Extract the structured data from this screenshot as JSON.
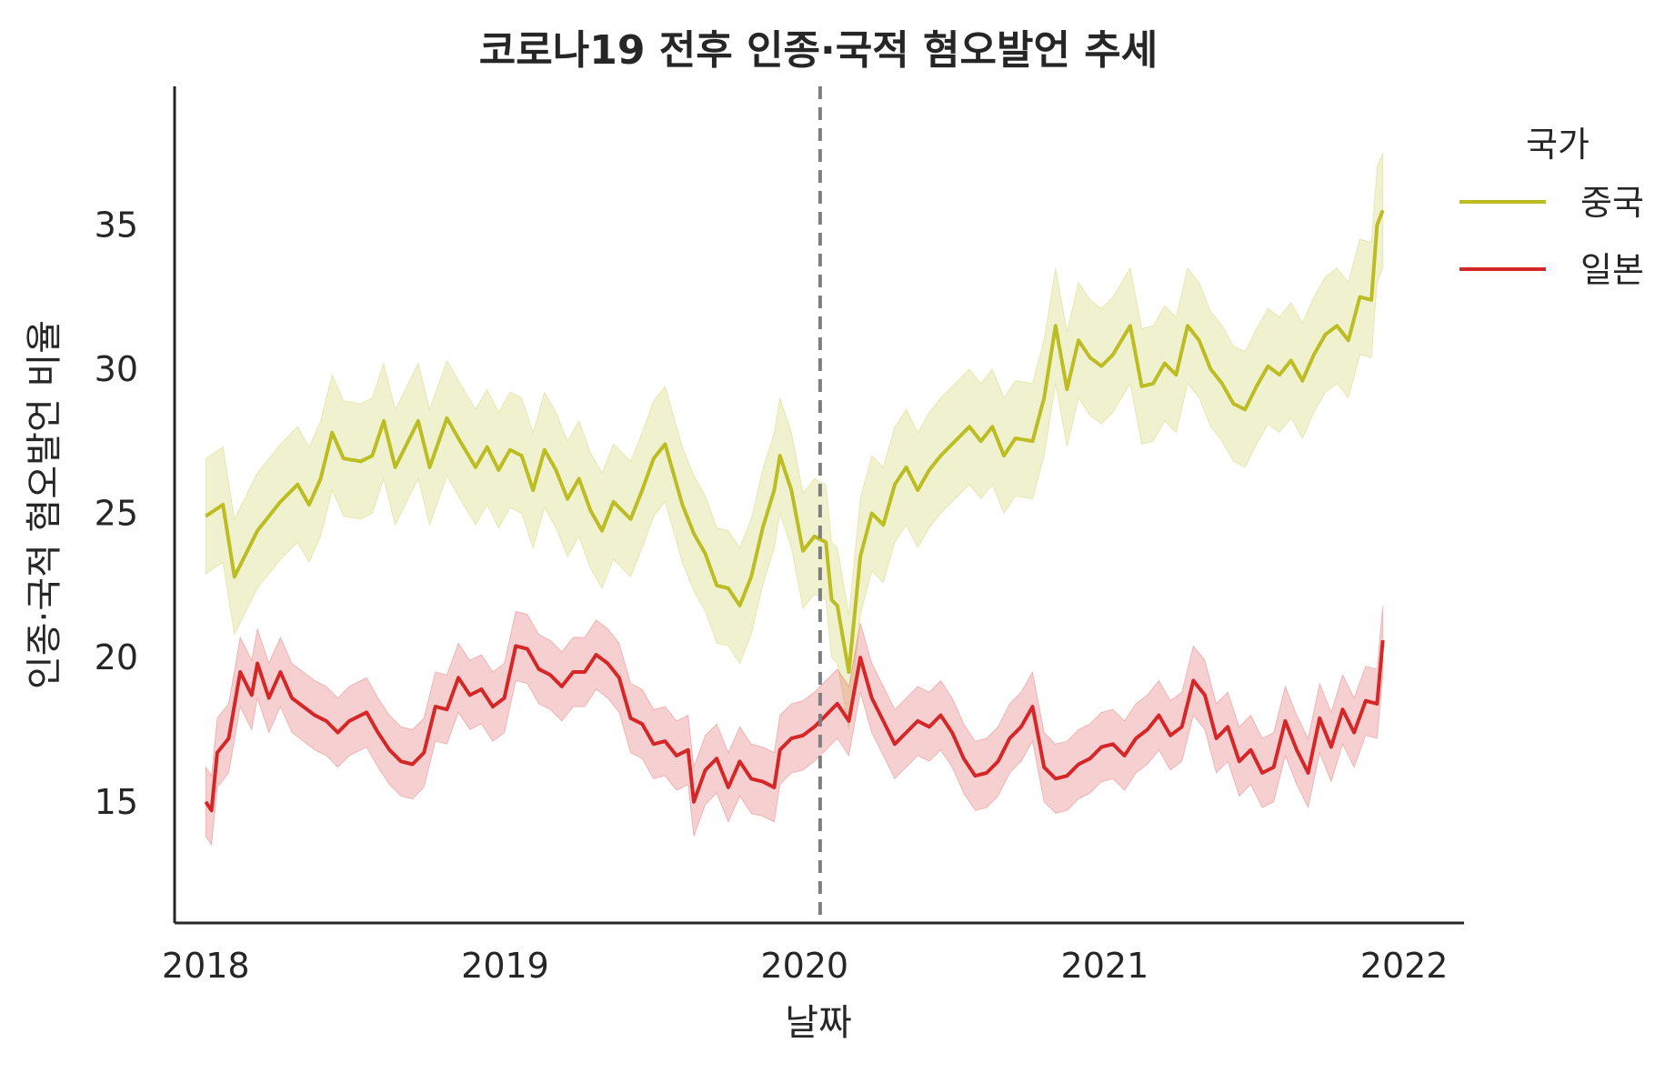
{
  "chart_data": {
    "type": "line",
    "title": "코로나19 전후 인종·국적 혐오발언 추세",
    "xlabel": "날짜",
    "ylabel": "인종·국적 혐오발언 비율",
    "x_ticks": [
      "2018",
      "2019",
      "2020",
      "2021",
      "2022"
    ],
    "y_ticks": [
      15,
      20,
      25,
      30,
      35
    ],
    "xlim": [
      "2017-11-24",
      "2022-03-15"
    ],
    "ylim": [
      10.8,
      39.8
    ],
    "grid": false,
    "legend": {
      "title": "국가",
      "placement": "top-right"
    },
    "reference_line": {
      "x": "2020-01-20",
      "style": "dashed",
      "color": "#7f7f7f"
    },
    "series": [
      {
        "name": "중국",
        "color": "#bcbd22",
        "band_half_width": 2.0,
        "points": [
          [
            "2018-01-01",
            24.9
          ],
          [
            "2018-01-22",
            25.3
          ],
          [
            "2018-02-05",
            22.8
          ],
          [
            "2018-03-05",
            24.4
          ],
          [
            "2018-04-02",
            25.4
          ],
          [
            "2018-04-23",
            26.0
          ],
          [
            "2018-05-07",
            25.3
          ],
          [
            "2018-05-21",
            26.2
          ],
          [
            "2018-06-04",
            27.8
          ],
          [
            "2018-06-18",
            26.9
          ],
          [
            "2018-07-09",
            26.8
          ],
          [
            "2018-07-23",
            27.0
          ],
          [
            "2018-08-06",
            28.2
          ],
          [
            "2018-08-20",
            26.6
          ],
          [
            "2018-09-03",
            27.4
          ],
          [
            "2018-09-17",
            28.2
          ],
          [
            "2018-10-01",
            26.6
          ],
          [
            "2018-10-22",
            28.3
          ],
          [
            "2018-11-05",
            27.6
          ],
          [
            "2018-11-26",
            26.6
          ],
          [
            "2018-12-10",
            27.3
          ],
          [
            "2018-12-24",
            26.5
          ],
          [
            "2019-01-07",
            27.2
          ],
          [
            "2019-01-21",
            27.0
          ],
          [
            "2019-02-04",
            25.8
          ],
          [
            "2019-02-18",
            27.2
          ],
          [
            "2019-03-04",
            26.5
          ],
          [
            "2019-03-18",
            25.5
          ],
          [
            "2019-04-01",
            26.2
          ],
          [
            "2019-04-15",
            25.1
          ],
          [
            "2019-04-29",
            24.4
          ],
          [
            "2019-05-13",
            25.4
          ],
          [
            "2019-06-03",
            24.8
          ],
          [
            "2019-06-17",
            25.8
          ],
          [
            "2019-07-01",
            26.9
          ],
          [
            "2019-07-15",
            27.4
          ],
          [
            "2019-08-05",
            25.3
          ],
          [
            "2019-08-19",
            24.3
          ],
          [
            "2019-09-02",
            23.6
          ],
          [
            "2019-09-16",
            22.5
          ],
          [
            "2019-09-30",
            22.4
          ],
          [
            "2019-10-14",
            21.8
          ],
          [
            "2019-10-28",
            22.8
          ],
          [
            "2019-11-11",
            24.5
          ],
          [
            "2019-11-25",
            25.8
          ],
          [
            "2019-12-02",
            27.0
          ],
          [
            "2019-12-16",
            25.8
          ],
          [
            "2019-12-30",
            23.7
          ],
          [
            "2020-01-13",
            24.2
          ],
          [
            "2020-01-27",
            24.0
          ],
          [
            "2020-02-03",
            22.0
          ],
          [
            "2020-02-10",
            21.8
          ],
          [
            "2020-02-24",
            19.5
          ],
          [
            "2020-03-09",
            23.5
          ],
          [
            "2020-03-23",
            25.0
          ],
          [
            "2020-04-06",
            24.6
          ],
          [
            "2020-04-20",
            26.0
          ],
          [
            "2020-05-04",
            26.6
          ],
          [
            "2020-05-18",
            25.8
          ],
          [
            "2020-06-01",
            26.5
          ],
          [
            "2020-06-15",
            27.0
          ],
          [
            "2020-07-06",
            27.6
          ],
          [
            "2020-07-20",
            28.0
          ],
          [
            "2020-08-03",
            27.5
          ],
          [
            "2020-08-17",
            28.0
          ],
          [
            "2020-08-31",
            27.0
          ],
          [
            "2020-09-14",
            27.6
          ],
          [
            "2020-10-05",
            27.5
          ],
          [
            "2020-10-19",
            29.0
          ],
          [
            "2020-11-02",
            31.5
          ],
          [
            "2020-11-16",
            29.3
          ],
          [
            "2020-11-30",
            31.0
          ],
          [
            "2020-12-14",
            30.4
          ],
          [
            "2020-12-28",
            30.1
          ],
          [
            "2021-01-11",
            30.5
          ],
          [
            "2021-02-01",
            31.5
          ],
          [
            "2021-02-15",
            29.4
          ],
          [
            "2021-03-01",
            29.5
          ],
          [
            "2021-03-15",
            30.2
          ],
          [
            "2021-03-29",
            29.8
          ],
          [
            "2021-04-12",
            31.5
          ],
          [
            "2021-04-26",
            31.0
          ],
          [
            "2021-05-10",
            30.0
          ],
          [
            "2021-05-24",
            29.5
          ],
          [
            "2021-06-07",
            28.8
          ],
          [
            "2021-06-21",
            28.6
          ],
          [
            "2021-07-05",
            29.4
          ],
          [
            "2021-07-19",
            30.1
          ],
          [
            "2021-08-02",
            29.8
          ],
          [
            "2021-08-16",
            30.3
          ],
          [
            "2021-08-30",
            29.6
          ],
          [
            "2021-09-13",
            30.5
          ],
          [
            "2021-09-27",
            31.2
          ],
          [
            "2021-10-11",
            31.5
          ],
          [
            "2021-10-25",
            31.0
          ],
          [
            "2021-11-08",
            32.5
          ],
          [
            "2021-11-22",
            32.4
          ],
          [
            "2021-11-29",
            35.0
          ],
          [
            "2021-12-06",
            35.5
          ]
        ]
      },
      {
        "name": "일본",
        "color": "#d62728",
        "band_half_width": 1.2,
        "points": [
          [
            "2018-01-01",
            15.0
          ],
          [
            "2018-01-08",
            14.7
          ],
          [
            "2018-01-15",
            16.7
          ],
          [
            "2018-01-29",
            17.2
          ],
          [
            "2018-02-12",
            19.5
          ],
          [
            "2018-02-26",
            18.7
          ],
          [
            "2018-03-05",
            19.8
          ],
          [
            "2018-03-19",
            18.6
          ],
          [
            "2018-04-02",
            19.5
          ],
          [
            "2018-04-16",
            18.6
          ],
          [
            "2018-04-30",
            18.3
          ],
          [
            "2018-05-14",
            18.0
          ],
          [
            "2018-05-28",
            17.8
          ],
          [
            "2018-06-11",
            17.4
          ],
          [
            "2018-06-25",
            17.8
          ],
          [
            "2018-07-16",
            18.1
          ],
          [
            "2018-07-30",
            17.4
          ],
          [
            "2018-08-13",
            16.8
          ],
          [
            "2018-08-27",
            16.4
          ],
          [
            "2018-09-10",
            16.3
          ],
          [
            "2018-09-24",
            16.7
          ],
          [
            "2018-10-08",
            18.3
          ],
          [
            "2018-10-22",
            18.2
          ],
          [
            "2018-11-05",
            19.3
          ],
          [
            "2018-11-19",
            18.7
          ],
          [
            "2018-12-03",
            18.9
          ],
          [
            "2018-12-17",
            18.3
          ],
          [
            "2018-12-31",
            18.6
          ],
          [
            "2019-01-14",
            20.4
          ],
          [
            "2019-01-28",
            20.3
          ],
          [
            "2019-02-11",
            19.6
          ],
          [
            "2019-02-25",
            19.4
          ],
          [
            "2019-03-11",
            19.0
          ],
          [
            "2019-03-25",
            19.5
          ],
          [
            "2019-04-08",
            19.5
          ],
          [
            "2019-04-22",
            20.1
          ],
          [
            "2019-05-06",
            19.8
          ],
          [
            "2019-05-20",
            19.3
          ],
          [
            "2019-06-03",
            17.9
          ],
          [
            "2019-06-17",
            17.7
          ],
          [
            "2019-07-01",
            17.0
          ],
          [
            "2019-07-15",
            17.1
          ],
          [
            "2019-07-29",
            16.6
          ],
          [
            "2019-08-12",
            16.8
          ],
          [
            "2019-08-19",
            15.0
          ],
          [
            "2019-09-02",
            16.1
          ],
          [
            "2019-09-16",
            16.5
          ],
          [
            "2019-09-30",
            15.5
          ],
          [
            "2019-10-14",
            16.4
          ],
          [
            "2019-10-28",
            15.8
          ],
          [
            "2019-11-11",
            15.7
          ],
          [
            "2019-11-25",
            15.5
          ],
          [
            "2019-12-02",
            16.8
          ],
          [
            "2019-12-16",
            17.2
          ],
          [
            "2019-12-30",
            17.3
          ],
          [
            "2020-01-13",
            17.6
          ],
          [
            "2020-01-27",
            18.0
          ],
          [
            "2020-02-10",
            18.4
          ],
          [
            "2020-02-24",
            17.8
          ],
          [
            "2020-03-09",
            20.0
          ],
          [
            "2020-03-23",
            18.6
          ],
          [
            "2020-04-06",
            17.8
          ],
          [
            "2020-04-20",
            17.0
          ],
          [
            "2020-05-04",
            17.4
          ],
          [
            "2020-05-18",
            17.8
          ],
          [
            "2020-06-01",
            17.6
          ],
          [
            "2020-06-15",
            18.0
          ],
          [
            "2020-06-29",
            17.4
          ],
          [
            "2020-07-13",
            16.5
          ],
          [
            "2020-07-27",
            15.9
          ],
          [
            "2020-08-10",
            16.0
          ],
          [
            "2020-08-24",
            16.4
          ],
          [
            "2020-09-07",
            17.2
          ],
          [
            "2020-09-21",
            17.6
          ],
          [
            "2020-10-05",
            18.3
          ],
          [
            "2020-10-19",
            16.2
          ],
          [
            "2020-11-02",
            15.8
          ],
          [
            "2020-11-16",
            15.9
          ],
          [
            "2020-11-30",
            16.3
          ],
          [
            "2020-12-14",
            16.5
          ],
          [
            "2020-12-28",
            16.9
          ],
          [
            "2021-01-11",
            17.0
          ],
          [
            "2021-01-25",
            16.6
          ],
          [
            "2021-02-08",
            17.2
          ],
          [
            "2021-02-22",
            17.5
          ],
          [
            "2021-03-08",
            18.0
          ],
          [
            "2021-03-22",
            17.3
          ],
          [
            "2021-04-05",
            17.6
          ],
          [
            "2021-04-19",
            19.2
          ],
          [
            "2021-05-03",
            18.7
          ],
          [
            "2021-05-17",
            17.2
          ],
          [
            "2021-05-31",
            17.6
          ],
          [
            "2021-06-14",
            16.4
          ],
          [
            "2021-06-28",
            16.8
          ],
          [
            "2021-07-12",
            16.0
          ],
          [
            "2021-07-26",
            16.2
          ],
          [
            "2021-08-09",
            17.8
          ],
          [
            "2021-08-23",
            16.8
          ],
          [
            "2021-09-06",
            16.0
          ],
          [
            "2021-09-20",
            17.9
          ],
          [
            "2021-10-04",
            16.9
          ],
          [
            "2021-10-18",
            18.2
          ],
          [
            "2021-11-01",
            17.4
          ],
          [
            "2021-11-15",
            18.5
          ],
          [
            "2021-11-29",
            18.4
          ],
          [
            "2021-12-06",
            20.6
          ]
        ]
      }
    ]
  }
}
